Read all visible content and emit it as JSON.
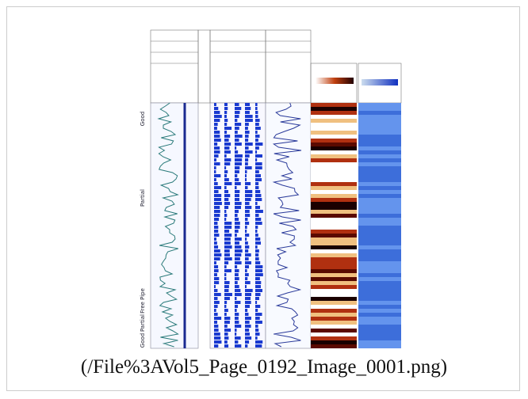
{
  "image": {
    "zone_labels": [
      "Good",
      "Partial",
      "Free Pipe",
      "Partial",
      "Good"
    ]
  },
  "caption": "(/File%3AVol5_Page_0192_Image_0001.png)"
}
